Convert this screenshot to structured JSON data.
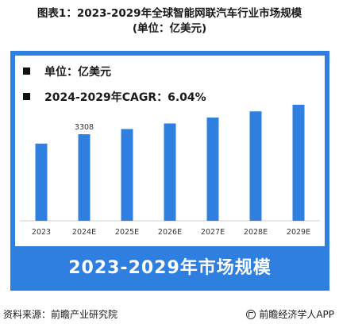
{
  "title": {
    "line1": "图表1：2023-2029年全球智能网联汽车行业市场规模",
    "line2": "(单位：亿美元)"
  },
  "legend": {
    "unit": "单位：亿美元",
    "cagr": "2024-2029年CAGR：6.04%"
  },
  "banner": "2023-2029年市场规模",
  "footer": {
    "source": "资料来源：前瞻产业研究院",
    "brand": "前瞻经济学人APP"
  },
  "colors": {
    "bar": "#2f7fe0",
    "frame": "#2f7fe0",
    "axis": "#cfcfcf"
  },
  "chart_data": {
    "type": "bar",
    "categories": [
      "2023",
      "2024E",
      "2025E",
      "2026E",
      "2027E",
      "2028E",
      "2029E"
    ],
    "values": [
      2950,
      3308,
      3508,
      3720,
      3945,
      4183,
      4436
    ],
    "data_labels": [
      null,
      "3308",
      null,
      null,
      null,
      null,
      null
    ],
    "ylim": [
      0,
      5100
    ],
    "grid": false
  }
}
